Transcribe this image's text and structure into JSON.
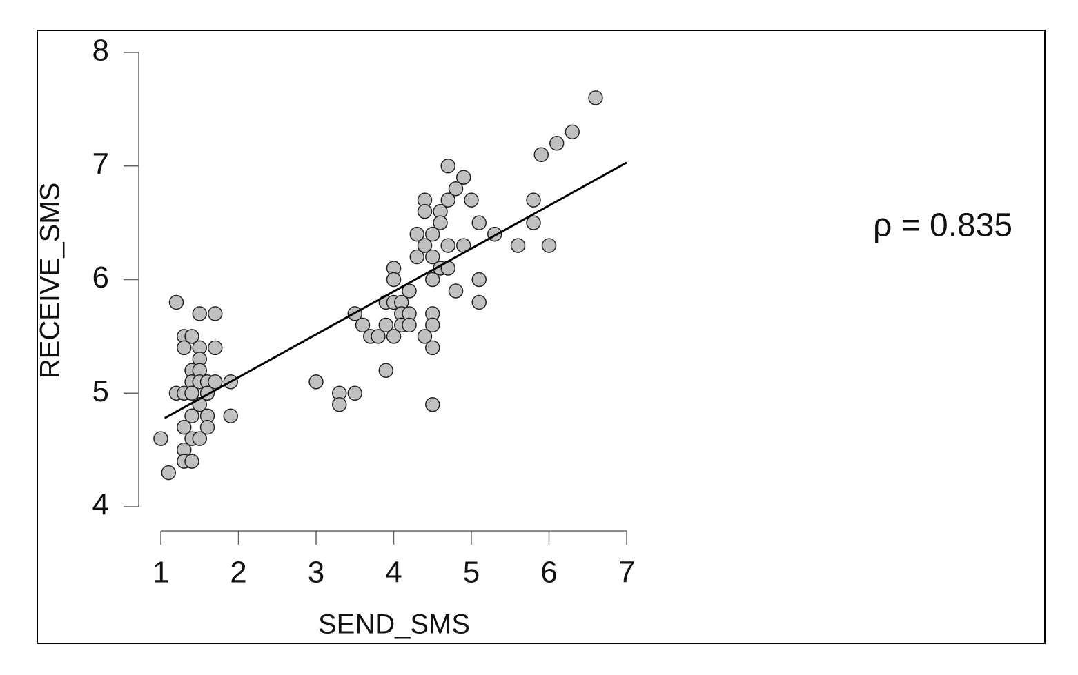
{
  "chart_data": {
    "type": "scatter",
    "xlabel": "SEND_SMS",
    "ylabel": "RECEIVE_SMS",
    "annotation": "ρ = 0.835",
    "x": [
      1.0,
      1.1,
      1.2,
      1.2,
      1.3,
      1.3,
      1.3,
      1.3,
      1.3,
      1.3,
      1.4,
      1.4,
      1.4,
      1.4,
      1.4,
      1.4,
      1.4,
      1.5,
      1.5,
      1.5,
      1.5,
      1.5,
      1.5,
      1.5,
      1.6,
      1.6,
      1.6,
      1.6,
      1.7,
      1.7,
      1.7,
      1.9,
      1.9,
      3.0,
      3.3,
      3.3,
      3.5,
      3.5,
      3.6,
      3.7,
      3.8,
      3.9,
      3.9,
      3.9,
      4.0,
      4.0,
      4.0,
      4.0,
      4.1,
      4.1,
      4.1,
      4.2,
      4.2,
      4.2,
      4.3,
      4.3,
      4.4,
      4.4,
      4.4,
      4.4,
      4.5,
      4.5,
      4.5,
      4.5,
      4.5,
      4.5,
      4.5,
      4.6,
      4.6,
      4.6,
      4.7,
      4.7,
      4.7,
      4.7,
      4.8,
      4.8,
      4.9,
      4.9,
      5.0,
      5.1,
      5.1,
      5.1,
      5.3,
      5.6,
      5.8,
      5.8,
      5.9,
      6.0,
      6.1,
      6.3,
      6.6
    ],
    "values": [
      4.6,
      4.3,
      5.8,
      5.0,
      5.5,
      5.4,
      5.0,
      4.7,
      4.5,
      4.4,
      5.5,
      5.2,
      5.1,
      5.0,
      4.8,
      4.6,
      4.4,
      5.7,
      5.4,
      5.3,
      5.2,
      5.1,
      4.9,
      4.6,
      5.1,
      5.0,
      4.8,
      4.7,
      5.7,
      5.4,
      5.1,
      5.1,
      4.8,
      5.1,
      5.0,
      4.9,
      5.0,
      5.7,
      5.6,
      5.5,
      5.5,
      5.2,
      5.6,
      5.8,
      6.1,
      6.0,
      5.8,
      5.5,
      5.8,
      5.7,
      5.6,
      5.7,
      5.6,
      5.9,
      6.4,
      6.2,
      6.7,
      6.6,
      6.3,
      5.5,
      6.4,
      6.2,
      6.0,
      5.7,
      5.6,
      5.4,
      4.9,
      6.6,
      6.5,
      6.1,
      7.0,
      6.7,
      6.3,
      6.1,
      6.8,
      5.9,
      6.9,
      6.3,
      6.7,
      6.5,
      6.0,
      5.8,
      6.4,
      6.3,
      6.7,
      6.5,
      7.1,
      6.3,
      7.2,
      7.3,
      7.6
    ],
    "color": "#c0c0c0",
    "trend_line": {
      "x": [
        1.05,
        7
      ],
      "y": [
        4.78,
        7.03
      ],
      "color": "#000000"
    },
    "xlim": [
      1,
      7
    ],
    "xticks": [
      1,
      2,
      3,
      4,
      5,
      6,
      7
    ],
    "ylim": [
      4,
      8
    ],
    "yticks": [
      4,
      5,
      6,
      7,
      8
    ]
  }
}
